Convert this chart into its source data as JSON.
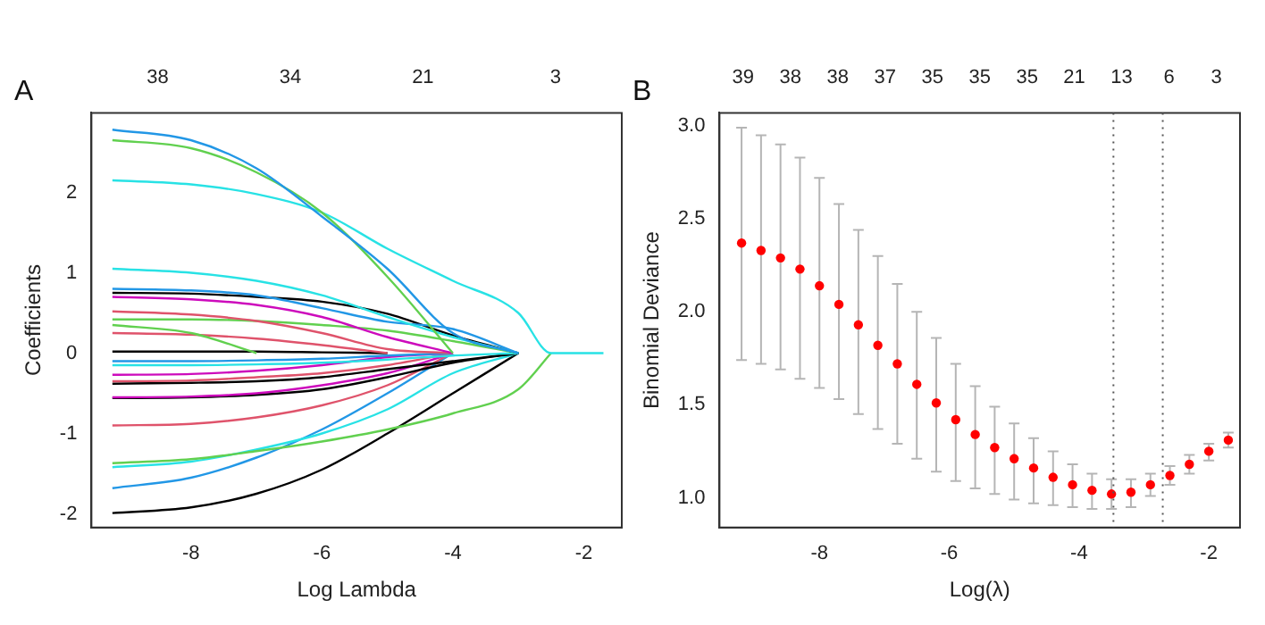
{
  "chart_data": [
    {
      "type": "line",
      "title": "A",
      "xlabel": "Log Lambda",
      "ylabel": "Coefficients",
      "xlim": [
        -9.52,
        -1.42
      ],
      "xticks": [
        -8,
        -6,
        -4,
        -2
      ],
      "ylim": [
        -2.17,
        2.99
      ],
      "yticks": [
        -2,
        -1,
        0,
        1,
        2
      ],
      "annotations": [
        "38",
        "34",
        "21",
        "3"
      ],
      "grid": false,
      "legend": false,
      "marker": "none",
      "line_style": "solid",
      "x": [
        -9.2,
        -8,
        -7,
        -6,
        -5,
        -4,
        -3,
        -2.5,
        -1.7
      ],
      "series": [
        {
          "color": "#2297e6",
          "values": [
            2.78,
            2.65,
            2.3,
            1.7,
            1.05,
            0.25,
            0,
            null,
            null
          ]
        },
        {
          "color": "#61d04f",
          "values": [
            2.65,
            2.55,
            2.25,
            1.75,
            0.95,
            0,
            null,
            null,
            null
          ]
        },
        {
          "color": "#28e2e5",
          "values": [
            2.15,
            2.1,
            1.98,
            1.75,
            1.3,
            0.9,
            0.5,
            0,
            0
          ]
        },
        {
          "color": "#28e2e5",
          "values": [
            1.05,
            1.0,
            0.9,
            0.72,
            0.45,
            0.2,
            0,
            null,
            null
          ]
        },
        {
          "color": "#2297e6",
          "values": [
            0.8,
            0.78,
            0.72,
            0.56,
            0.39,
            0.3,
            0,
            null,
            null
          ]
        },
        {
          "color": "#000000",
          "values": [
            0.75,
            0.74,
            0.7,
            0.64,
            0.49,
            0.22,
            0,
            null,
            null
          ]
        },
        {
          "color": "#cd0bbc",
          "values": [
            0.7,
            0.67,
            0.6,
            0.45,
            0.2,
            0,
            null,
            null,
            null
          ]
        },
        {
          "color": "#df536b",
          "values": [
            0.52,
            0.48,
            0.4,
            0.25,
            0.05,
            0,
            null,
            null,
            null
          ]
        },
        {
          "color": "#61d04f",
          "values": [
            0.42,
            0.42,
            0.4,
            0.35,
            0.28,
            0.15,
            0,
            null,
            null
          ]
        },
        {
          "color": "#61d04f",
          "values": [
            0.35,
            0.25,
            0,
            null,
            null,
            null,
            null,
            null,
            null
          ]
        },
        {
          "color": "#df536b",
          "values": [
            0.25,
            0.23,
            0.18,
            0.1,
            0,
            null,
            null,
            null,
            null
          ]
        },
        {
          "color": "#000000",
          "values": [
            0.02,
            0.02,
            0.02,
            0.01,
            0,
            null,
            null,
            null,
            null
          ]
        },
        {
          "color": "#2297e6",
          "values": [
            -0.1,
            -0.1,
            -0.09,
            -0.07,
            -0.03,
            0,
            null,
            null,
            null
          ]
        },
        {
          "color": "#28e2e5",
          "values": [
            -0.15,
            -0.15,
            -0.14,
            -0.12,
            -0.08,
            -0.03,
            0,
            null,
            null
          ]
        },
        {
          "color": "#cd0bbc",
          "values": [
            -0.27,
            -0.26,
            -0.22,
            -0.15,
            -0.05,
            0,
            null,
            null,
            null
          ]
        },
        {
          "color": "#df536b",
          "values": [
            -0.35,
            -0.34,
            -0.3,
            -0.25,
            -0.15,
            0,
            null,
            null,
            null
          ]
        },
        {
          "color": "#000000",
          "values": [
            -0.38,
            -0.37,
            -0.35,
            -0.3,
            -0.2,
            -0.1,
            0,
            null,
            null
          ]
        },
        {
          "color": "#cd0bbc",
          "values": [
            -0.55,
            -0.54,
            -0.5,
            -0.4,
            -0.25,
            0,
            null,
            null,
            null
          ]
        },
        {
          "color": "#000000",
          "values": [
            -0.56,
            -0.55,
            -0.52,
            -0.45,
            -0.3,
            -0.12,
            0,
            null,
            null
          ]
        },
        {
          "color": "#df536b",
          "values": [
            -0.9,
            -0.88,
            -0.8,
            -0.65,
            -0.4,
            0,
            null,
            null,
            null
          ]
        },
        {
          "color": "#61d04f",
          "values": [
            -1.37,
            -1.32,
            -1.22,
            -1.1,
            -0.95,
            -0.75,
            -0.45,
            0,
            null
          ]
        },
        {
          "color": "#28e2e5",
          "values": [
            -1.42,
            -1.35,
            -1.2,
            -1.0,
            -0.7,
            -0.25,
            0,
            null,
            null
          ]
        },
        {
          "color": "#2297e6",
          "values": [
            -1.68,
            -1.55,
            -1.3,
            -0.95,
            -0.5,
            0,
            null,
            null,
            null
          ]
        },
        {
          "color": "#000000",
          "values": [
            -1.99,
            -1.92,
            -1.75,
            -1.45,
            -1.0,
            -0.5,
            0,
            null,
            null
          ]
        }
      ]
    },
    {
      "type": "scatter",
      "title": "B",
      "xlabel": "Log(λ)",
      "ylabel": "Binomial Deviance",
      "xlim": [
        -9.54,
        -1.52
      ],
      "xticks": [
        -8,
        -6,
        -4,
        -2
      ],
      "ylim": [
        0.84,
        3.07
      ],
      "yticks": [
        {
          "value": 1,
          "label": "1.0"
        },
        1.5,
        {
          "value": 2,
          "label": "2.0"
        },
        2.5,
        {
          "value": 3,
          "label": "3.0"
        }
      ],
      "annotations": [
        "39",
        "38",
        "38",
        "37",
        "35",
        "35",
        "35",
        "21",
        "13",
        "6",
        "3"
      ],
      "grid": false,
      "legend": false,
      "marker": "circle",
      "x": [
        -9.2,
        -8.9,
        -8.6,
        -8.3,
        -8.0,
        -7.7,
        -7.4,
        -7.1,
        -6.8,
        -6.5,
        -6.2,
        -5.9,
        -5.6,
        -5.3,
        -5.0,
        -4.7,
        -4.4,
        -4.1,
        -3.8,
        -3.5,
        -3.2,
        -2.9,
        -2.6,
        -2.3,
        -2.0,
        -1.7
      ],
      "series": [
        {
          "color": "#ff0000",
          "values": [
            2.37,
            2.33,
            2.29,
            2.23,
            2.14,
            2.04,
            1.93,
            1.82,
            1.72,
            1.61,
            1.51,
            1.42,
            1.34,
            1.27,
            1.21,
            1.16,
            1.11,
            1.07,
            1.04,
            1.02,
            1.03,
            1.07,
            1.12,
            1.18,
            1.25,
            1.31
          ],
          "errors": [
            [
              1.74,
              2.99
            ],
            [
              1.72,
              2.95
            ],
            [
              1.69,
              2.9
            ],
            [
              1.64,
              2.83
            ],
            [
              1.59,
              2.72
            ],
            [
              1.53,
              2.58
            ],
            [
              1.45,
              2.44
            ],
            [
              1.37,
              2.3
            ],
            [
              1.29,
              2.15
            ],
            [
              1.21,
              2.0
            ],
            [
              1.14,
              1.86
            ],
            [
              1.09,
              1.72
            ],
            [
              1.05,
              1.6
            ],
            [
              1.02,
              1.49
            ],
            [
              0.99,
              1.4
            ],
            [
              0.97,
              1.32
            ],
            [
              0.96,
              1.25
            ],
            [
              0.95,
              1.18
            ],
            [
              0.94,
              1.13
            ],
            [
              0.94,
              1.1
            ],
            [
              0.95,
              1.1
            ],
            [
              1.01,
              1.13
            ],
            [
              1.07,
              1.17
            ],
            [
              1.13,
              1.23
            ],
            [
              1.2,
              1.29
            ],
            [
              1.27,
              1.35
            ]
          ]
        }
      ],
      "ref_lines": [
        {
          "axis": "x",
          "value": -3.47,
          "line_style": "dotted"
        },
        {
          "axis": "x",
          "value": -2.71,
          "line_style": "dotted"
        }
      ]
    }
  ]
}
